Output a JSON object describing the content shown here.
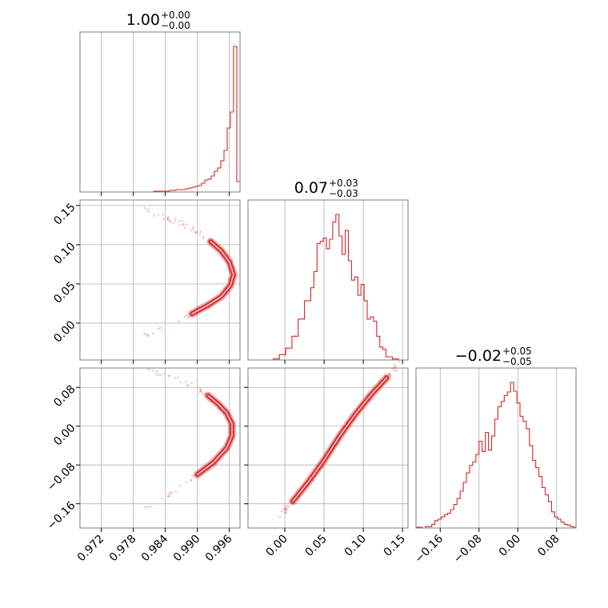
{
  "chart_data": {
    "type": "corner",
    "style": {
      "color": "#d62728",
      "grid": true,
      "frame_color": "#808080",
      "grid_color": "#b0b0b0"
    },
    "parameters": [
      {
        "title_value": "1.00",
        "title_plus": "+0.00",
        "title_minus": "−0.00",
        "range": [
          0.968,
          0.998
        ]
      },
      {
        "title_value": "0.07",
        "title_plus": "+0.03",
        "title_minus": "−0.03",
        "range": [
          -0.047,
          0.157
        ]
      },
      {
        "title_value": "−0.02",
        "title_plus": "+0.05",
        "title_minus": "−0.05",
        "range": [
          -0.21,
          0.12
        ]
      }
    ],
    "ticks": [
      {
        "values": [
          0.972,
          0.978,
          0.984,
          0.99,
          0.996
        ],
        "labels": [
          "0.972",
          "0.978",
          "0.984",
          "0.990",
          "0.996"
        ]
      },
      {
        "values": [
          0.0,
          0.05,
          0.1,
          0.15
        ],
        "labels": [
          "0.00",
          "0.05",
          "0.10",
          "0.15"
        ]
      },
      {
        "values": [
          -0.16,
          -0.08,
          0.0,
          0.08
        ],
        "labels": [
          "−0.16",
          "−0.08",
          "0.00",
          "0.08"
        ]
      }
    ],
    "histograms": [
      {
        "parameter": 0,
        "bins": [
          0.968,
          0.9686,
          0.9692,
          0.9698,
          0.9704,
          0.971,
          0.9716,
          0.9722,
          0.9728,
          0.9734,
          0.974,
          0.9746,
          0.9752,
          0.9758,
          0.9764,
          0.977,
          0.9776,
          0.9782,
          0.9788,
          0.9794,
          0.98,
          0.9806,
          0.9812,
          0.9818,
          0.9824,
          0.983,
          0.9836,
          0.9842,
          0.9848,
          0.9854,
          0.986,
          0.9866,
          0.9872,
          0.9878,
          0.9884,
          0.989,
          0.9896,
          0.9902,
          0.9908,
          0.9914,
          0.992,
          0.9926,
          0.9932,
          0.9938,
          0.9944,
          0.995,
          0.9956,
          0.9962,
          0.9968,
          0.9974,
          0.998
        ],
        "counts": [
          0,
          0,
          0,
          0,
          0,
          0,
          0,
          0,
          0,
          0,
          0,
          0,
          0,
          0,
          0,
          0,
          0,
          0,
          0,
          0,
          0,
          0,
          0,
          1,
          1,
          1,
          1,
          1,
          2,
          2,
          3,
          3,
          3,
          4,
          5,
          6,
          7,
          8,
          11,
          15,
          16,
          20,
          26,
          30,
          39,
          52,
          80,
          100,
          182,
          13
        ]
      },
      {
        "parameter": 1,
        "bins": [
          -0.047,
          -0.043,
          -0.039,
          -0.035,
          -0.031,
          -0.027,
          -0.023,
          -0.019,
          -0.015,
          -0.011,
          -0.007,
          -0.003,
          0.001,
          0.005,
          0.009,
          0.013,
          0.017,
          0.021,
          0.025,
          0.029,
          0.033,
          0.037,
          0.041,
          0.045,
          0.049,
          0.053,
          0.057,
          0.061,
          0.065,
          0.069,
          0.073,
          0.077,
          0.081,
          0.085,
          0.089,
          0.093,
          0.097,
          0.101,
          0.105,
          0.109,
          0.113,
          0.117,
          0.121,
          0.125,
          0.129,
          0.133,
          0.137,
          0.141,
          0.145,
          0.149,
          0.153,
          0.157
        ],
        "counts": [
          0,
          0,
          0,
          0,
          0,
          0,
          0,
          0,
          1,
          1,
          5,
          5,
          11,
          11,
          22,
          22,
          38,
          38,
          55,
          55,
          67,
          82,
          108,
          110,
          113,
          103,
          112,
          128,
          135,
          115,
          98,
          120,
          92,
          74,
          77,
          60,
          70,
          55,
          38,
          40,
          36,
          22,
          12,
          10,
          3,
          3,
          1,
          1,
          0,
          0,
          0
        ]
      },
      {
        "parameter": 2,
        "bins": [
          -0.21,
          -0.2035,
          -0.197,
          -0.1905,
          -0.184,
          -0.1775,
          -0.171,
          -0.1645,
          -0.158,
          -0.1515,
          -0.145,
          -0.1385,
          -0.132,
          -0.1255,
          -0.119,
          -0.1125,
          -0.106,
          -0.0995,
          -0.093,
          -0.0865,
          -0.08,
          -0.0735,
          -0.067,
          -0.0605,
          -0.054,
          -0.0475,
          -0.041,
          -0.0345,
          -0.028,
          -0.0215,
          -0.015,
          -0.0085,
          -0.002,
          0.0045,
          0.011,
          0.0175,
          0.024,
          0.0305,
          0.037,
          0.0435,
          0.05,
          0.0565,
          0.063,
          0.0695,
          0.076,
          0.0825,
          0.089,
          0.0955,
          0.102,
          0.1085,
          0.115,
          0.12
        ],
        "counts": [
          1,
          1,
          0,
          2,
          2,
          5,
          10,
          12,
          15,
          18,
          20,
          25,
          32,
          40,
          50,
          62,
          75,
          85,
          90,
          100,
          118,
          104,
          130,
          106,
          125,
          148,
          165,
          172,
          180,
          185,
          198,
          186,
          170,
          152,
          145,
          135,
          112,
          92,
          82,
          70,
          55,
          45,
          36,
          22,
          15,
          12,
          8,
          5,
          4,
          2,
          1
        ]
      }
    ],
    "panels_2d": [
      {
        "x_param": 0,
        "y_param": 1,
        "shape": "arc",
        "description_points": [
          [
            0.9797,
            0.147
          ],
          [
            0.9835,
            0.135
          ],
          [
            0.987,
            0.127
          ],
          [
            0.99,
            0.117
          ],
          [
            0.9925,
            0.104
          ],
          [
            0.9945,
            0.092
          ],
          [
            0.996,
            0.078
          ],
          [
            0.9968,
            0.062
          ],
          [
            0.9962,
            0.048
          ],
          [
            0.9945,
            0.034
          ],
          [
            0.992,
            0.023
          ],
          [
            0.989,
            0.012
          ],
          [
            0.986,
            0.002
          ],
          [
            0.983,
            -0.006
          ],
          [
            0.9795,
            -0.018
          ]
        ]
      },
      {
        "x_param": 0,
        "y_param": 2,
        "shape": "arc",
        "description_points": [
          [
            0.9797,
            0.118
          ],
          [
            0.9835,
            0.107
          ],
          [
            0.9868,
            0.095
          ],
          [
            0.9898,
            0.08
          ],
          [
            0.992,
            0.063
          ],
          [
            0.994,
            0.045
          ],
          [
            0.9955,
            0.027
          ],
          [
            0.9965,
            0.005
          ],
          [
            0.9965,
            -0.02
          ],
          [
            0.9955,
            -0.045
          ],
          [
            0.993,
            -0.075
          ],
          [
            0.99,
            -0.1
          ],
          [
            0.987,
            -0.123
          ],
          [
            0.984,
            -0.145
          ],
          [
            0.9795,
            -0.175
          ]
        ]
      },
      {
        "x_param": 1,
        "y_param": 2,
        "shape": "line",
        "description_points": [
          [
            -0.005,
            -0.185
          ],
          [
            0.01,
            -0.155
          ],
          [
            0.03,
            -0.115
          ],
          [
            0.05,
            -0.07
          ],
          [
            0.07,
            -0.02
          ],
          [
            0.09,
            0.025
          ],
          [
            0.11,
            0.065
          ],
          [
            0.13,
            0.1
          ],
          [
            0.145,
            0.13
          ]
        ]
      }
    ]
  }
}
